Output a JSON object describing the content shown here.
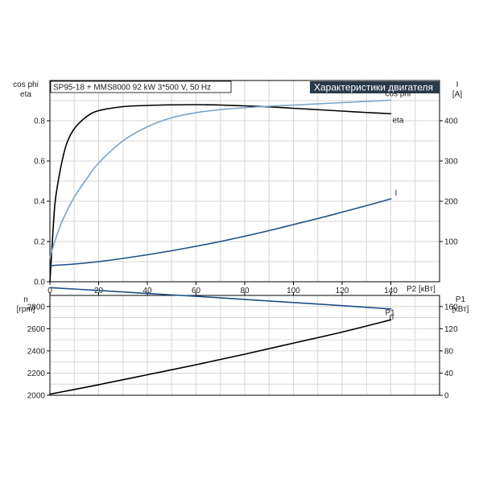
{
  "header": {
    "pump_info": "SP95-18 + MMS8000   92 kW   3*500 V, 50 Hz",
    "title": "Характеристики двигателя"
  },
  "colors": {
    "eta": "#000000",
    "cos_phi": "#7aa3c7",
    "current": "#1f4e86",
    "speed": "#1f4e86",
    "p1": "#000000",
    "title_bg": "#2b3a4a",
    "grid": "#d6d6d6"
  },
  "chart_data": [
    {
      "type": "line",
      "xlabel": "P2 [кВт]",
      "ylabel_left": [
        "cos phi",
        "eta"
      ],
      "ylabel_right": [
        "I",
        "[A]"
      ],
      "xlim": [
        0,
        160
      ],
      "ylim_left": [
        0,
        1.0
      ],
      "ylim_right": [
        0,
        500
      ],
      "x_ticks": [
        "0",
        "20",
        "40",
        "60",
        "80",
        "100",
        "120",
        "140"
      ],
      "y_ticks_left": [
        "0.0",
        "0.2",
        "0.4",
        "0.6",
        "0.8"
      ],
      "y_ticks_right": [
        "100",
        "200",
        "300",
        "400"
      ],
      "grid": true,
      "series": [
        {
          "name": "eta",
          "axis": "left",
          "x": [
            0,
            1,
            2,
            3,
            5,
            7,
            10,
            15,
            20,
            30,
            40,
            50,
            60,
            70,
            80,
            90,
            100,
            110,
            120,
            130,
            140
          ],
          "y": [
            0.0,
            0.2,
            0.38,
            0.47,
            0.6,
            0.69,
            0.76,
            0.82,
            0.85,
            0.87,
            0.876,
            0.879,
            0.88,
            0.878,
            0.874,
            0.869,
            0.862,
            0.855,
            0.848,
            0.841,
            0.835
          ]
        },
        {
          "name": "cos phi",
          "axis": "left",
          "x": [
            0,
            2,
            5,
            10,
            15,
            20,
            30,
            40,
            50,
            60,
            70,
            80,
            90,
            100,
            110,
            120,
            130,
            140
          ],
          "y": [
            0.12,
            0.2,
            0.3,
            0.42,
            0.51,
            0.59,
            0.7,
            0.77,
            0.815,
            0.84,
            0.855,
            0.865,
            0.872,
            0.878,
            0.884,
            0.89,
            0.896,
            0.902
          ]
        },
        {
          "name": "I",
          "axis": "right",
          "x": [
            0,
            10,
            20,
            30,
            40,
            50,
            60,
            70,
            80,
            90,
            100,
            110,
            120,
            130,
            140
          ],
          "y": [
            40,
            44,
            50,
            58,
            67,
            77,
            88,
            100,
            113,
            127,
            142,
            157,
            173,
            189,
            206
          ]
        }
      ]
    },
    {
      "type": "line",
      "xlim": [
        0,
        160
      ],
      "ylabel_left": [
        "n",
        "[rpm]"
      ],
      "ylabel_right": [
        "P1",
        "[кВт]"
      ],
      "ylim_left": [
        2000,
        2900
      ],
      "ylim_right": [
        0,
        180
      ],
      "y_ticks_left": [
        "2000",
        "2200",
        "2400",
        "2600",
        "2800"
      ],
      "y_ticks_right": [
        "0",
        "40",
        "80",
        "120",
        "160"
      ],
      "grid": true,
      "series": [
        {
          "name": "n",
          "axis": "left",
          "x": [
            0,
            20,
            40,
            60,
            80,
            100,
            120,
            140
          ],
          "y": [
            2970,
            2945,
            2918,
            2892,
            2864,
            2836,
            2808,
            2778
          ]
        },
        {
          "name": "P1",
          "axis": "right",
          "x": [
            0,
            20,
            40,
            60,
            80,
            100,
            120,
            140
          ],
          "y": [
            2,
            19,
            37,
            55,
            74,
            94,
            114,
            136
          ]
        }
      ]
    }
  ]
}
